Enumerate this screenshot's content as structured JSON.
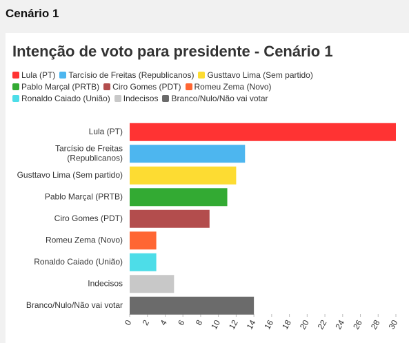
{
  "header": "Cenário 1",
  "chart_data": {
    "type": "bar",
    "orientation": "horizontal",
    "title": "Intenção de voto para presidente - Cenário 1",
    "categories": [
      "Lula (PT)",
      "Tarcísio de Freitas (Republicanos)",
      "Gusttavo Lima (Sem partido)",
      "Pablo Marçal (PRTB)",
      "Ciro Gomes (PDT)",
      "Romeu Zema (Novo)",
      "Ronaldo Caiado (União)",
      "Indecisos",
      "Branco/Nulo/Não vai votar"
    ],
    "values": [
      30,
      13,
      12,
      11,
      9,
      3,
      3,
      5,
      14
    ],
    "colors": [
      "#ff3333",
      "#4db6ef",
      "#fddc32",
      "#33aa33",
      "#b34d4d",
      "#ff6633",
      "#4ddde8",
      "#c8c8c8",
      "#6b6b6b"
    ],
    "xlim": [
      0,
      30
    ],
    "xticks": [
      0,
      2,
      4,
      6,
      8,
      10,
      12,
      14,
      16,
      18,
      20,
      22,
      24,
      26,
      28,
      30
    ],
    "grid": false
  }
}
